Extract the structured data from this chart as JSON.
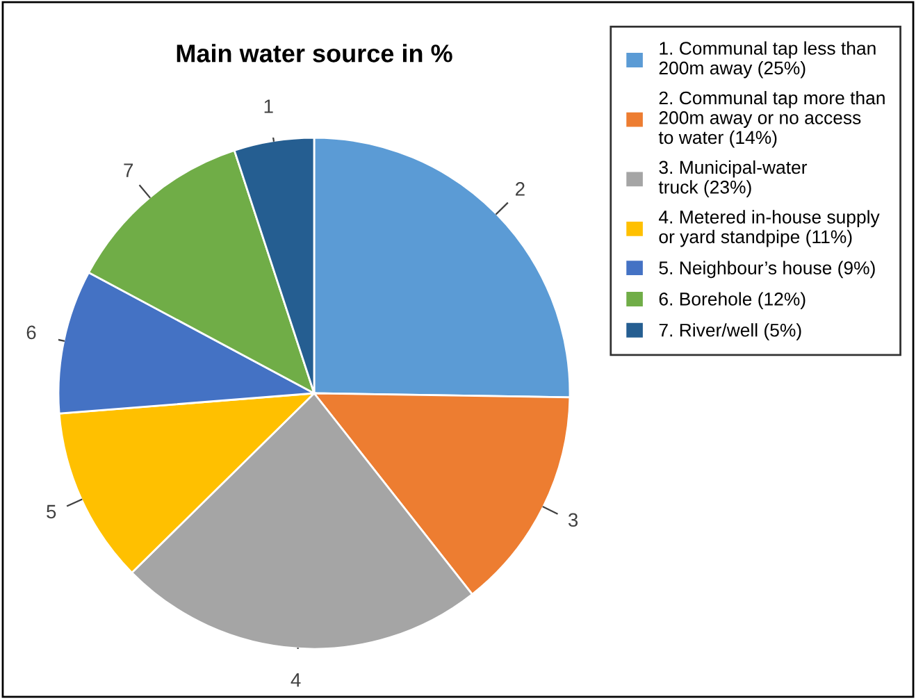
{
  "chart_data": {
    "type": "pie",
    "title": "Main water source in %",
    "categories": [
      "1. Communal tap less than\n200m away (25%)",
      "2. Communal tap more than\n200m away or no access\nto water (14%)",
      "3. Municipal-water\ntruck (23%)",
      "4. Metered in-house supply\nor yard standpipe (11%)",
      "5. Neighbour’s house (9%)",
      "6. Borehole (12%)",
      "7. River/well (5%)"
    ],
    "values": [
      25,
      14,
      23,
      11,
      9,
      12,
      5
    ],
    "colors": [
      "#5b9bd5",
      "#ed7d31",
      "#a5a5a5",
      "#ffc000",
      "#4472c4",
      "#70ad47",
      "#255e91"
    ],
    "annotations": [
      "2",
      "3",
      "4",
      "5",
      "6",
      "7",
      "1"
    ],
    "legend": "top right"
  }
}
